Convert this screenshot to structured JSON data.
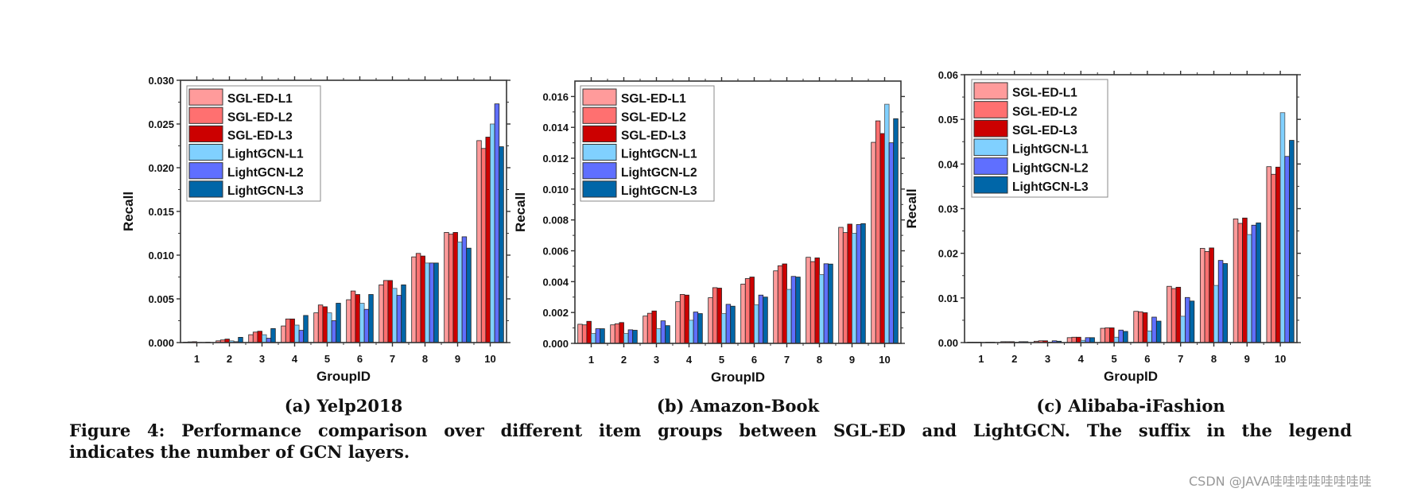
{
  "legend": [
    "SGL-ED-L1",
    "SGL-ED-L2",
    "SGL-ED-L3",
    "LightGCN-L1",
    "LightGCN-L2",
    "LightGCN-L3"
  ],
  "colors": {
    "SGL-ED-L1": "#FF9B9B",
    "SGL-ED-L2": "#FF7070",
    "SGL-ED-L3": "#CC0000",
    "LightGCN-L1": "#80D0FF",
    "LightGCN-L2": "#5F6FFF",
    "LightGCN-L3": "#0066A8"
  },
  "subcaptions": [
    "(a) Yelp2018",
    "(b) Amazon-Book",
    "(c) Alibaba-iFashion"
  ],
  "caption": {
    "line1": "Figure 4: Performance comparison over different item groups between SGL-ED and LightGCN. The suffix in the legend",
    "line2": "indicates the number of GCN layers."
  },
  "watermark": "CSDN @JAVA哇哇哇哇哇哇哇哇",
  "chart_data": [
    {
      "type": "bar",
      "xlabel": "GroupID",
      "ylabel": "Recall",
      "categories": [
        "1",
        "2",
        "3",
        "4",
        "5",
        "6",
        "7",
        "8",
        "9",
        "10"
      ],
      "ylim": [
        0,
        0.03
      ],
      "yticks": [
        "0.000",
        "0.005",
        "0.010",
        "0.015",
        "0.020",
        "0.025",
        "0.030"
      ],
      "legend_position": "top-left",
      "series": [
        {
          "name": "SGL-ED-L1",
          "values": [
            5e-05,
            0.0002,
            0.0009,
            0.0019,
            0.0034,
            0.0049,
            0.0066,
            0.0098,
            0.0126,
            0.0231
          ]
        },
        {
          "name": "SGL-ED-L2",
          "values": [
            8e-05,
            0.0003,
            0.0012,
            0.0027,
            0.0043,
            0.0059,
            0.0071,
            0.0102,
            0.0124,
            0.0222
          ]
        },
        {
          "name": "SGL-ED-L3",
          "values": [
            0.0001,
            0.0004,
            0.0013,
            0.0027,
            0.0041,
            0.0055,
            0.0071,
            0.0099,
            0.0126,
            0.0235
          ]
        },
        {
          "name": "LightGCN-L1",
          "values": [
            3e-05,
            0.0002,
            0.0009,
            0.002,
            0.0034,
            0.0045,
            0.0062,
            0.0091,
            0.0115,
            0.025
          ]
        },
        {
          "name": "LightGCN-L2",
          "values": [
            2e-05,
            0.0001,
            0.0005,
            0.0014,
            0.0025,
            0.0038,
            0.0054,
            0.0091,
            0.0121,
            0.0273
          ]
        },
        {
          "name": "LightGCN-L3",
          "values": [
            5e-05,
            0.0006,
            0.0016,
            0.0031,
            0.0045,
            0.0055,
            0.0066,
            0.0091,
            0.0108,
            0.0224
          ]
        }
      ]
    },
    {
      "type": "bar",
      "xlabel": "GroupID",
      "ylabel": "Recall",
      "categories": [
        "1",
        "2",
        "3",
        "4",
        "5",
        "6",
        "7",
        "8",
        "9",
        "10"
      ],
      "ylim": [
        0,
        0.017
      ],
      "yticks": [
        "0.000",
        "0.002",
        "0.004",
        "0.006",
        "0.008",
        "0.010",
        "0.012",
        "0.014",
        "0.016"
      ],
      "legend_position": "top-left",
      "series": [
        {
          "name": "SGL-ED-L1",
          "values": [
            0.00124,
            0.0012,
            0.00177,
            0.0027,
            0.00296,
            0.00384,
            0.0047,
            0.00558,
            0.00752,
            0.01303
          ]
        },
        {
          "name": "SGL-ED-L2",
          "values": [
            0.0012,
            0.00127,
            0.00195,
            0.00317,
            0.00361,
            0.0042,
            0.00503,
            0.0053,
            0.00718,
            0.01442
          ]
        },
        {
          "name": "SGL-ED-L3",
          "values": [
            0.00143,
            0.00135,
            0.0021,
            0.00313,
            0.00358,
            0.0043,
            0.00515,
            0.00554,
            0.00773,
            0.0136
          ]
        },
        {
          "name": "LightGCN-L1",
          "values": [
            0.00064,
            0.00064,
            0.00095,
            0.0015,
            0.00193,
            0.0025,
            0.0035,
            0.00446,
            0.00714,
            0.0155
          ]
        },
        {
          "name": "LightGCN-L2",
          "values": [
            0.00095,
            0.00088,
            0.00146,
            0.00203,
            0.00253,
            0.00313,
            0.00434,
            0.00516,
            0.0077,
            0.013
          ]
        },
        {
          "name": "LightGCN-L3",
          "values": [
            0.00095,
            0.00085,
            0.00115,
            0.00193,
            0.00241,
            0.003,
            0.0043,
            0.00514,
            0.00776,
            0.01456
          ]
        }
      ]
    },
    {
      "type": "bar",
      "xlabel": "GroupID",
      "ylabel": "Recall",
      "categories": [
        "1",
        "2",
        "3",
        "4",
        "5",
        "6",
        "7",
        "8",
        "9",
        "10"
      ],
      "ylim": [
        0,
        0.06
      ],
      "yticks": [
        "0.00",
        "0.01",
        "0.02",
        "0.03",
        "0.04",
        "0.05",
        "0.06"
      ],
      "legend_position": "top-left",
      "series": [
        {
          "name": "SGL-ED-L1",
          "values": [
            0.0001,
            0.0002,
            0.0003,
            0.0011,
            0.0032,
            0.007,
            0.0126,
            0.0211,
            0.0277,
            0.0394
          ]
        },
        {
          "name": "SGL-ED-L2",
          "values": [
            0.0001,
            0.0002,
            0.0004,
            0.0012,
            0.0033,
            0.0069,
            0.0121,
            0.0204,
            0.0267,
            0.0377
          ]
        },
        {
          "name": "SGL-ED-L3",
          "values": [
            0.0001,
            0.0002,
            0.0004,
            0.0012,
            0.0033,
            0.0067,
            0.0124,
            0.0212,
            0.0279,
            0.0393
          ]
        },
        {
          "name": "LightGCN-L1",
          "values": [
            5e-05,
            0.0001,
            0.0001,
            0.0005,
            0.0012,
            0.0026,
            0.0059,
            0.0128,
            0.0242,
            0.0515
          ]
        },
        {
          "name": "LightGCN-L2",
          "values": [
            0.0001,
            0.0002,
            0.0004,
            0.0011,
            0.0028,
            0.0057,
            0.0101,
            0.0184,
            0.0263,
            0.0417
          ]
        },
        {
          "name": "LightGCN-L3",
          "values": [
            0.0001,
            0.0002,
            0.0003,
            0.0011,
            0.0025,
            0.0048,
            0.0093,
            0.0177,
            0.0268,
            0.0453
          ]
        }
      ]
    }
  ]
}
